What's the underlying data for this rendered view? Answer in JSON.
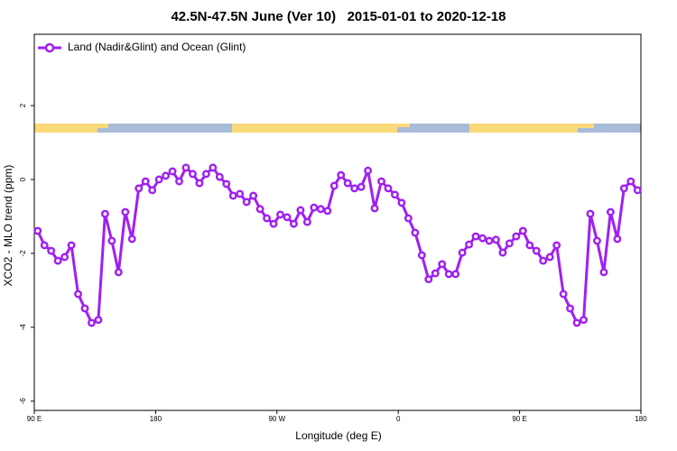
{
  "chart_data": {
    "type": "line",
    "title": "42.5N-47.5N June (Ver 10)   2015-01-01 to 2020-12-18",
    "x_label": "Longitude (deg E)",
    "y_label": "XCO2 - MLO trend (ppm)",
    "x": [
      92.5,
      97.5,
      102.5,
      107.5,
      112.5,
      117.5,
      122.5,
      127.5,
      132.5,
      137.5,
      142.5,
      147.5,
      152.5,
      157.5,
      162.5,
      167.5,
      172.5,
      177.5,
      182.5,
      187.5,
      192.5,
      197.5,
      202.5,
      207.5,
      212.5,
      217.5,
      222.5,
      227.5,
      232.5,
      237.5,
      242.5,
      247.5,
      252.5,
      257.5,
      262.5,
      267.5,
      272.5,
      277.5,
      282.5,
      287.5,
      292.5,
      297.5,
      302.5,
      307.5,
      312.5,
      317.5,
      322.5,
      327.5,
      332.5,
      337.5,
      342.5,
      347.5,
      352.5,
      357.5,
      362.5,
      367.5,
      372.5,
      377.5,
      382.5,
      387.5,
      392.5,
      397.5,
      402.5,
      407.5,
      412.5,
      417.5,
      422.5,
      427.5,
      432.5,
      437.5,
      442.5,
      447.5,
      452.5,
      457.5,
      462.5,
      467.5,
      472.5,
      477.5,
      482.5,
      487.5,
      492.5,
      497.5,
      502.5,
      507.5,
      512.5,
      517.5,
      522.5,
      527.5,
      532.5,
      537.5
    ],
    "series": [
      {
        "name": "Land (Nadir&Glint) and Ocean (Glint)",
        "color": "#a020f0",
        "values": [
          -1.39,
          -1.78,
          -1.93,
          -2.2,
          -2.1,
          -1.78,
          -3.1,
          -3.49,
          -3.88,
          -3.8,
          -0.93,
          -1.66,
          -2.51,
          -0.88,
          -1.61,
          -0.24,
          -0.05,
          -0.29,
          0,
          0.1,
          0.22,
          -0.05,
          0.32,
          0.15,
          -0.1,
          0.15,
          0.32,
          0.07,
          -0.12,
          -0.44,
          -0.39,
          -0.61,
          -0.44,
          -0.8,
          -1.05,
          -1.2,
          -0.95,
          -1.02,
          -1.2,
          -0.83,
          -1.15,
          -0.76,
          -0.8,
          -0.85,
          -0.17,
          0.12,
          -0.1,
          -0.24,
          -0.2,
          0.24,
          -0.78,
          -0.05,
          -0.24,
          -0.41,
          -0.63,
          -1.05,
          -1.44,
          -2.05,
          -2.7,
          -2.54,
          -2.29,
          -2.56,
          -2.56,
          -1.98,
          -1.76,
          -1.54,
          -1.59,
          -1.66,
          -1.63,
          -1.98,
          -1.73,
          -1.54,
          -1.39,
          -1.78,
          -1.93,
          -2.2,
          -2.1,
          -1.78,
          -3.1,
          -3.49,
          -3.88,
          -3.8,
          -0.93,
          -1.66,
          -2.51,
          -0.88,
          -1.61,
          -0.24,
          -0.05,
          -0.29
        ]
      }
    ],
    "xlim": [
      90,
      540
    ],
    "xticks": [
      {
        "value": 90,
        "label": "90 E"
      },
      180,
      {
        "value": 270,
        "label": "90 W"
      },
      {
        "value": 360,
        "label": "0"
      },
      {
        "value": 450,
        "label": "90 E"
      },
      {
        "value": 540,
        "label": "180"
      }
    ],
    "ylim": [
      -6.25,
      3.93
    ],
    "yticks": [
      2,
      0,
      -2,
      -4,
      -6
    ],
    "legend": "top-left",
    "grid": false
  }
}
